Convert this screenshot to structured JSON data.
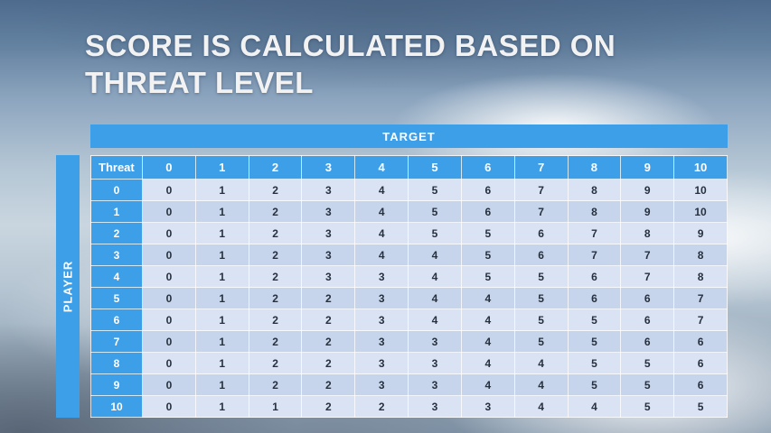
{
  "title_lines": [
    "SCORE IS CALCULATED BASED ON",
    "THREAT LEVEL"
  ],
  "target_label": "TARGET",
  "player_label": "PLAYER",
  "table": {
    "corner_label": "Threat",
    "col_headers": [
      "0",
      "1",
      "2",
      "3",
      "4",
      "5",
      "6",
      "7",
      "8",
      "9",
      "10"
    ],
    "rows": [
      {
        "label": "0",
        "values": [
          "0",
          "1",
          "2",
          "3",
          "4",
          "5",
          "6",
          "7",
          "8",
          "9",
          "10"
        ]
      },
      {
        "label": "1",
        "values": [
          "0",
          "1",
          "2",
          "3",
          "4",
          "5",
          "6",
          "7",
          "8",
          "9",
          "10"
        ]
      },
      {
        "label": "2",
        "values": [
          "0",
          "1",
          "2",
          "3",
          "4",
          "5",
          "5",
          "6",
          "7",
          "8",
          "9"
        ]
      },
      {
        "label": "3",
        "values": [
          "0",
          "1",
          "2",
          "3",
          "4",
          "4",
          "5",
          "6",
          "7",
          "7",
          "8"
        ]
      },
      {
        "label": "4",
        "values": [
          "0",
          "1",
          "2",
          "3",
          "3",
          "4",
          "5",
          "5",
          "6",
          "7",
          "8"
        ]
      },
      {
        "label": "5",
        "values": [
          "0",
          "1",
          "2",
          "2",
          "3",
          "4",
          "4",
          "5",
          "6",
          "6",
          "7"
        ]
      },
      {
        "label": "6",
        "values": [
          "0",
          "1",
          "2",
          "2",
          "3",
          "4",
          "4",
          "5",
          "5",
          "6",
          "7"
        ]
      },
      {
        "label": "7",
        "values": [
          "0",
          "1",
          "2",
          "2",
          "3",
          "3",
          "4",
          "5",
          "5",
          "6",
          "6"
        ]
      },
      {
        "label": "8",
        "values": [
          "0",
          "1",
          "2",
          "2",
          "3",
          "3",
          "4",
          "4",
          "5",
          "5",
          "6"
        ]
      },
      {
        "label": "9",
        "values": [
          "0",
          "1",
          "2",
          "2",
          "3",
          "3",
          "4",
          "4",
          "5",
          "5",
          "6"
        ]
      },
      {
        "label": "10",
        "values": [
          "0",
          "1",
          "1",
          "2",
          "2",
          "3",
          "3",
          "4",
          "4",
          "5",
          "5"
        ]
      }
    ]
  },
  "chart_data": {
    "type": "table",
    "title": "Score by threat level (Player vs Target)",
    "col_axis_label": "TARGET",
    "row_axis_label": "PLAYER",
    "columns": [
      "Threat",
      "0",
      "1",
      "2",
      "3",
      "4",
      "5",
      "6",
      "7",
      "8",
      "9",
      "10"
    ],
    "rows": [
      [
        "0",
        0,
        1,
        2,
        3,
        4,
        5,
        6,
        7,
        8,
        9,
        10
      ],
      [
        "1",
        0,
        1,
        2,
        3,
        4,
        5,
        6,
        7,
        8,
        9,
        10
      ],
      [
        "2",
        0,
        1,
        2,
        3,
        4,
        5,
        5,
        6,
        7,
        8,
        9
      ],
      [
        "3",
        0,
        1,
        2,
        3,
        4,
        4,
        5,
        6,
        7,
        7,
        8
      ],
      [
        "4",
        0,
        1,
        2,
        3,
        3,
        4,
        5,
        5,
        6,
        7,
        8
      ],
      [
        "5",
        0,
        1,
        2,
        2,
        3,
        4,
        4,
        5,
        6,
        6,
        7
      ],
      [
        "6",
        0,
        1,
        2,
        2,
        3,
        4,
        4,
        5,
        5,
        6,
        7
      ],
      [
        "7",
        0,
        1,
        2,
        2,
        3,
        3,
        4,
        5,
        5,
        6,
        6
      ],
      [
        "8",
        0,
        1,
        2,
        2,
        3,
        3,
        4,
        4,
        5,
        5,
        6
      ],
      [
        "9",
        0,
        1,
        2,
        2,
        3,
        3,
        4,
        4,
        5,
        5,
        6
      ],
      [
        "10",
        0,
        1,
        1,
        2,
        2,
        3,
        3,
        4,
        4,
        5,
        5
      ]
    ]
  },
  "colors": {
    "accent_blue": "#3d9fe8",
    "band_light": "#dae3f3",
    "band_dark": "#c7d5ec",
    "title_text": "#f2f2f2",
    "body_text": "#26303e"
  }
}
